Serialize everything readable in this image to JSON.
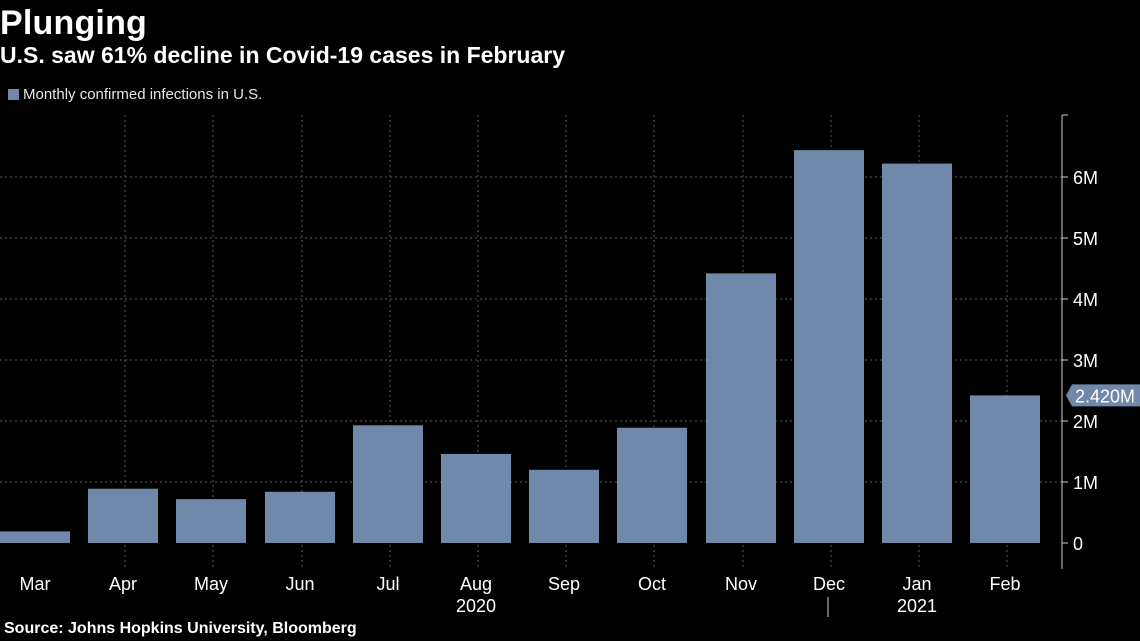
{
  "header": {
    "title": "Plunging",
    "subtitle": "U.S. saw 61% decline in Covid-19 cases in February"
  },
  "legend": {
    "label": "Monthly confirmed infections in U.S."
  },
  "source": "Source: Johns Hopkins University, Bloomberg",
  "colors": {
    "background": "#000000",
    "bar": "#7089ab",
    "grid": "#5a5a5a",
    "text": "#ffffff"
  },
  "chart_data": {
    "type": "bar",
    "categories": [
      "Mar",
      "Apr",
      "May",
      "Jun",
      "Jul",
      "Aug",
      "Sep",
      "Oct",
      "Nov",
      "Dec",
      "Jan",
      "Feb"
    ],
    "values": [
      190000,
      890000,
      720000,
      840000,
      1930000,
      1460000,
      1200000,
      1890000,
      4420000,
      6440000,
      6220000,
      2420000
    ],
    "year_labels": [
      {
        "label": "2020",
        "under": "Aug"
      },
      {
        "label": "2021",
        "under": "Jan"
      }
    ],
    "y_ticks": [
      0,
      1000000,
      2000000,
      3000000,
      4000000,
      5000000,
      6000000
    ],
    "y_tick_labels": [
      "0",
      "1M",
      "2M",
      "3M",
      "4M",
      "5M",
      "6M"
    ],
    "ylim": [
      0,
      7000000
    ],
    "y_axis_position": "right",
    "grid": true,
    "legend_position": "top-left",
    "callout": {
      "category": "Feb",
      "label": "2.420M"
    }
  }
}
